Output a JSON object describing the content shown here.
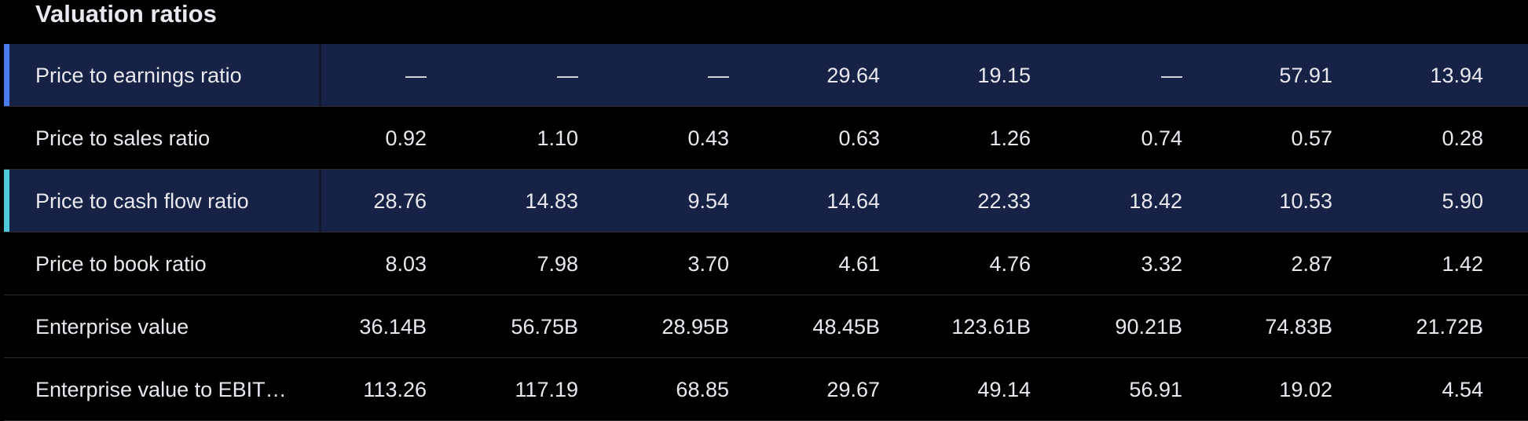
{
  "title": "Valuation ratios",
  "rows": [
    {
      "label": "Price to earnings ratio",
      "values": [
        "—",
        "—",
        "—",
        "29.64",
        "19.15",
        "—",
        "57.91",
        "13.94"
      ]
    },
    {
      "label": "Price to sales ratio",
      "values": [
        "0.92",
        "1.10",
        "0.43",
        "0.63",
        "1.26",
        "0.74",
        "0.57",
        "0.28"
      ]
    },
    {
      "label": "Price to cash flow ratio",
      "values": [
        "28.76",
        "14.83",
        "9.54",
        "14.64",
        "22.33",
        "18.42",
        "10.53",
        "5.90"
      ]
    },
    {
      "label": "Price to book ratio",
      "values": [
        "8.03",
        "7.98",
        "3.70",
        "4.61",
        "4.76",
        "3.32",
        "2.87",
        "1.42"
      ]
    },
    {
      "label": "Enterprise value",
      "values": [
        "36.14B",
        "56.75B",
        "28.95B",
        "48.45B",
        "123.61B",
        "90.21B",
        "74.83B",
        "21.72B"
      ]
    },
    {
      "label": "Enterprise value to EBIT…",
      "values": [
        "113.26",
        "117.19",
        "68.85",
        "29.67",
        "49.14",
        "56.91",
        "19.02",
        "4.54"
      ]
    }
  ]
}
